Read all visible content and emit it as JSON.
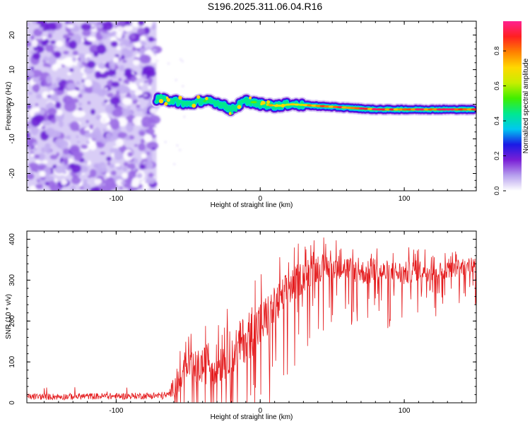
{
  "title": "S196.2025.311.06.04.R16",
  "chart_data": [
    {
      "type": "heatmap",
      "xlabel": "Height of straight line (km)",
      "ylabel": "Frequency (Hz)",
      "xlim": [
        -162,
        150
      ],
      "ylim": [
        -25,
        24
      ],
      "xticks": [
        -100,
        0,
        100
      ],
      "yticks": [
        -20,
        -10,
        0,
        10,
        20
      ],
      "colorbar": {
        "label": "Normalized spectral amplitude",
        "range": [
          0,
          0.97
        ],
        "ticks": [
          0.0,
          0.2,
          0.4,
          0.6,
          0.8
        ],
        "colormap": [
          "#ffffff",
          "#b7a0ee",
          "#7a1fd6",
          "#1a1ae6",
          "#00c8f0",
          "#00e890",
          "#40ee00",
          "#c8ee00",
          "#ffd800",
          "#ff8000",
          "#ff2020",
          "#ff2090"
        ]
      },
      "noise_region": {
        "x": [
          -162,
          -72
        ],
        "mean_amplitude": 0.1
      },
      "signal_ridge": {
        "x": [
          -72,
          -60,
          -50,
          -40,
          -30,
          -20,
          -10,
          0,
          10,
          20,
          40,
          60,
          80,
          100,
          120,
          148
        ],
        "freq": [
          1.5,
          1.0,
          0.0,
          1.0,
          0.5,
          -1.5,
          1.0,
          0.0,
          -0.5,
          0.0,
          -0.5,
          -1.0,
          -1.5,
          -1.5,
          -1.5,
          -1.5
        ],
        "amplitude": [
          0.3,
          0.35,
          0.35,
          0.4,
          0.45,
          0.4,
          0.5,
          0.6,
          0.75,
          0.7,
          0.8,
          0.85,
          0.9,
          0.85,
          0.9,
          0.88
        ]
      }
    },
    {
      "type": "line",
      "xlabel": "Height of straight line (km)",
      "ylabel": "SNR (10 * v/v)",
      "xlim": [
        -162,
        150
      ],
      "ylim": [
        0,
        420
      ],
      "xticks": [
        -100,
        0,
        100
      ],
      "yticks": [
        0,
        100,
        200,
        300,
        400
      ],
      "line_color": "#e41a1c",
      "series": [
        {
          "name": "SNR",
          "x": [
            -162,
            -140,
            -120,
            -100,
            -80,
            -64,
            -60,
            -50,
            -40,
            -30,
            -20,
            -10,
            0,
            10,
            20,
            30,
            40,
            50,
            60,
            70,
            80,
            90,
            100,
            110,
            120,
            130,
            140,
            150
          ],
          "base": [
            15,
            15,
            16,
            16,
            17,
            18,
            40,
            80,
            90,
            95,
            120,
            160,
            190,
            230,
            280,
            310,
            330,
            335,
            330,
            320,
            315,
            320,
            315,
            325,
            320,
            325,
            330,
            335
          ],
          "amplitude": [
            8,
            8,
            8,
            8,
            8,
            10,
            50,
            80,
            90,
            100,
            110,
            120,
            120,
            110,
            90,
            80,
            70,
            60,
            60,
            60,
            60,
            60,
            60,
            50,
            50,
            40,
            40,
            40
          ],
          "peak": 410
        }
      ]
    }
  ]
}
